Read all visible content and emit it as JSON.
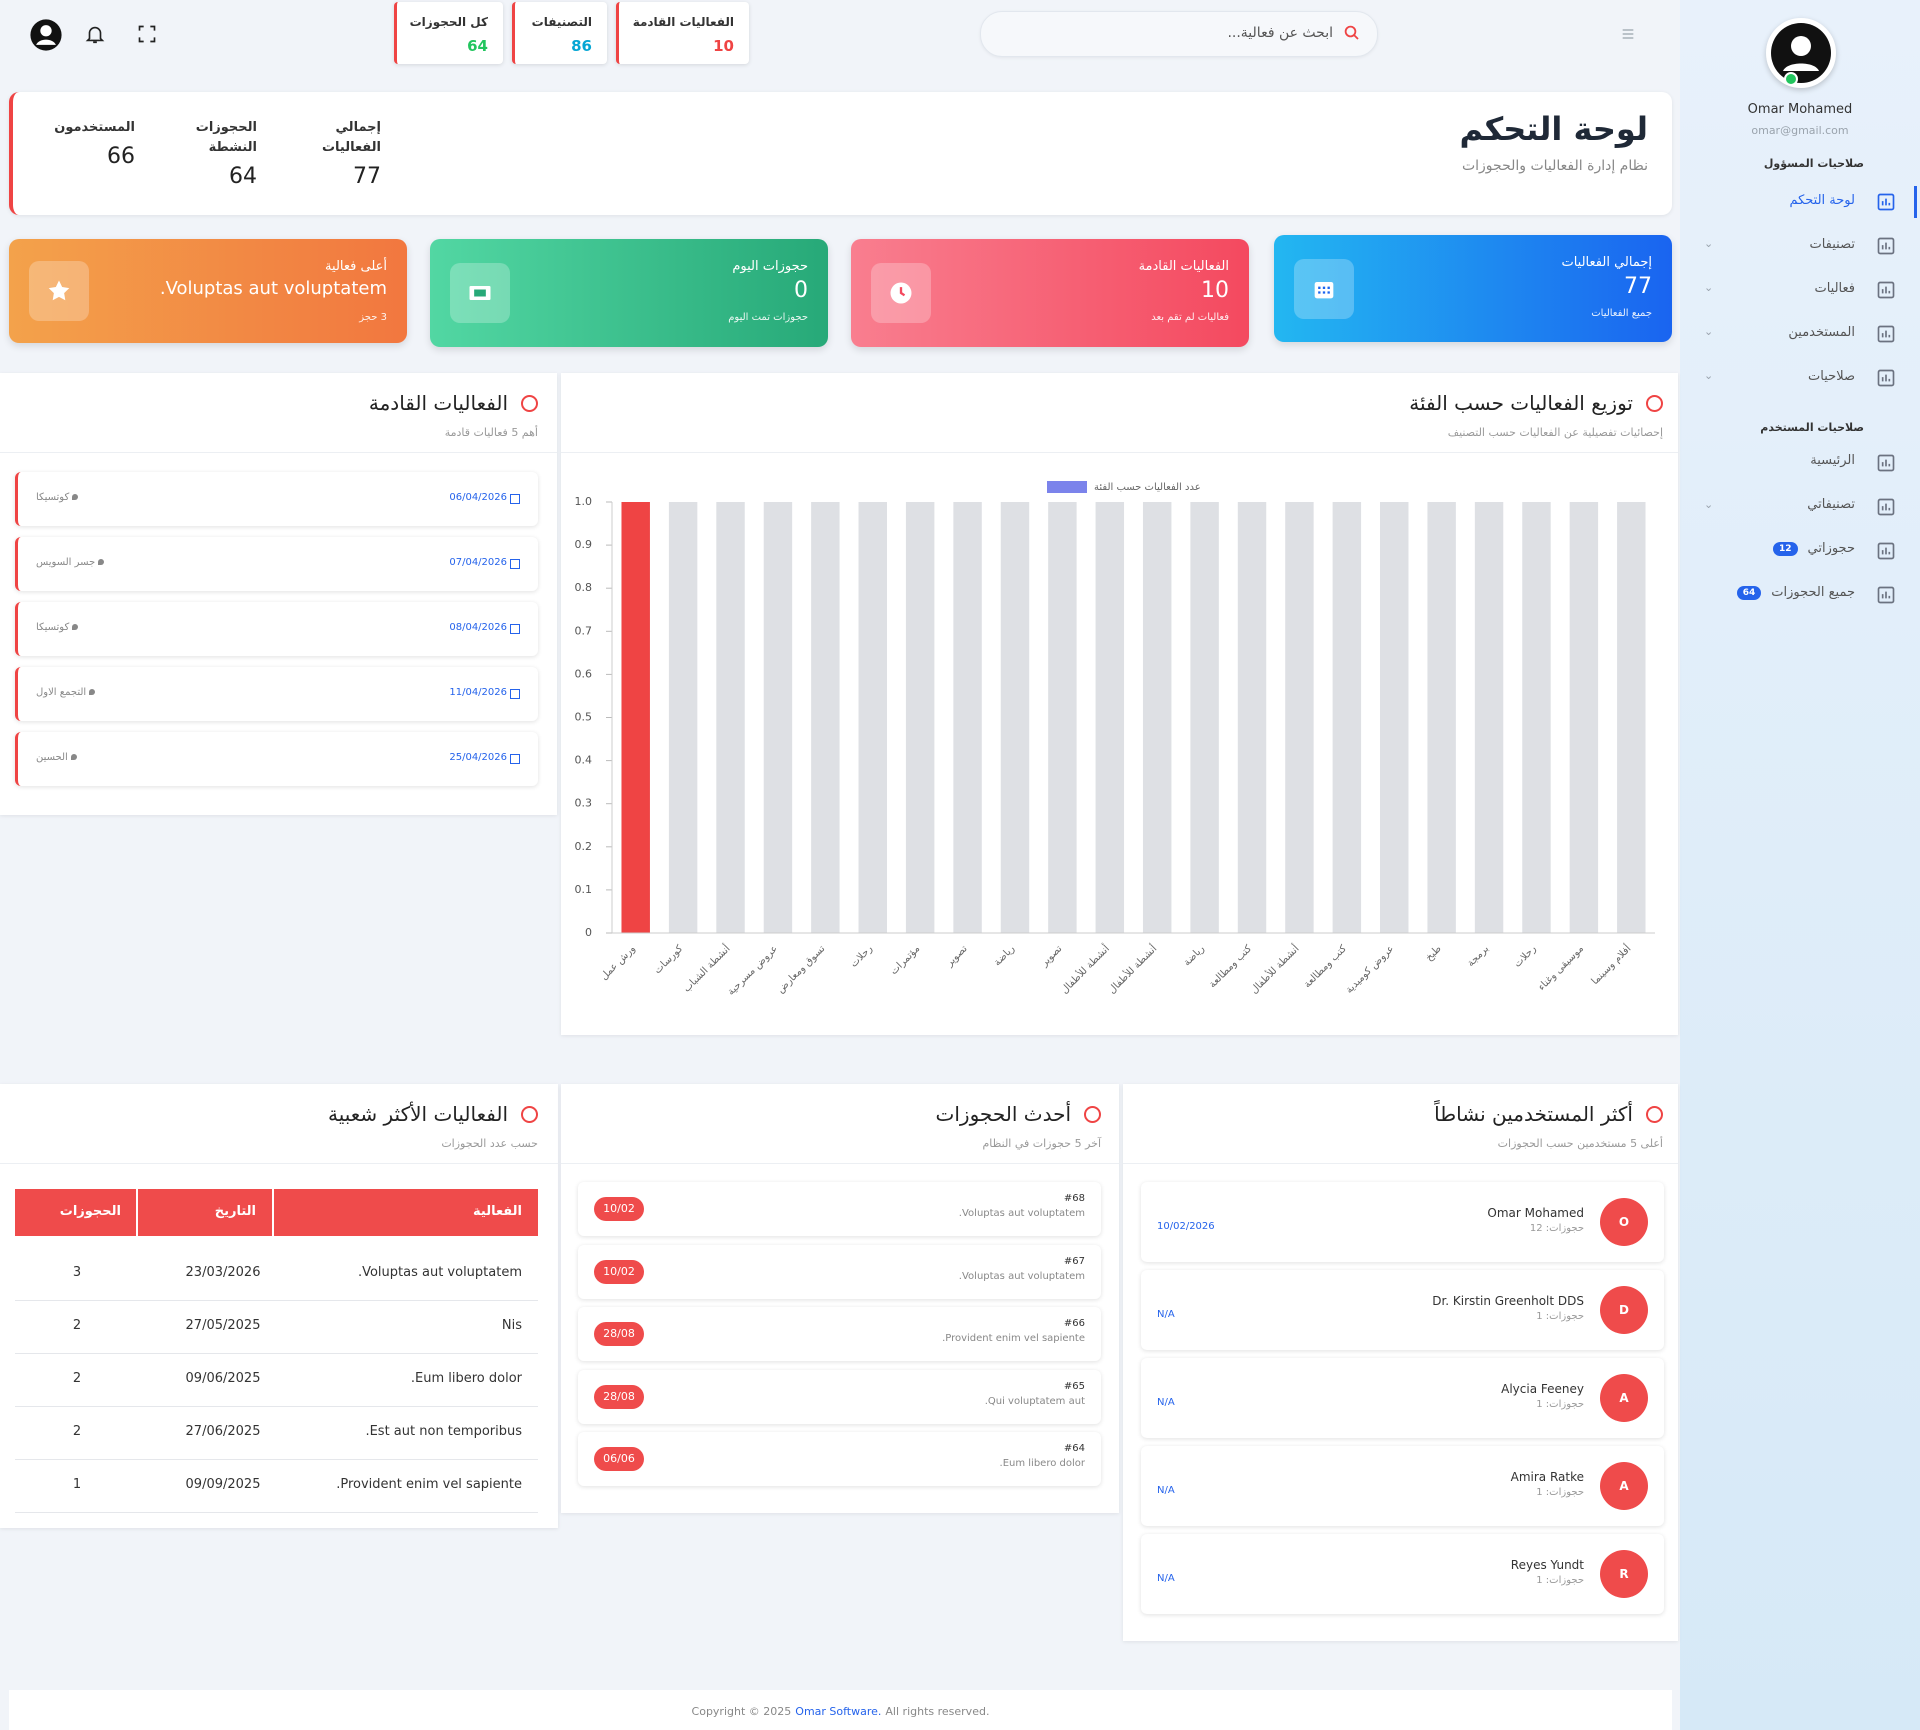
{
  "sidebar": {
    "user_name": "Omar Mohamed",
    "user_email": "omar@gmail.com",
    "admin_section": "صلاحيات المسؤول",
    "admin_items": [
      "لوحة التحكم",
      "تصنيفات",
      "فعاليات",
      "المستخدمين",
      "صلاحيات"
    ],
    "user_section": "صلاحيات المستخدم",
    "user_items": [
      {
        "label": "الرئيسية"
      },
      {
        "label": "تصنيفاتي"
      },
      {
        "label": "حجوزاتي",
        "badge": 12
      },
      {
        "label": "جميع الحجوزات",
        "badge": 64
      }
    ]
  },
  "topbar": {
    "search_placeholder": "ابحث عن فعالية...",
    "stats": [
      {
        "label": "الفعاليات القادمة",
        "value": 10,
        "color": "#ef4444"
      },
      {
        "label": "التصنيفات",
        "value": 86,
        "color": "#06a6d4"
      },
      {
        "label": "كل الحجوزات",
        "value": 64,
        "color": "#22c55e"
      }
    ]
  },
  "header": {
    "title": "لوحة التحكم",
    "subtitle": "نظام إدارة الفعاليات والحجوزات",
    "stats": [
      {
        "label": "إجمالي الفعاليات",
        "value": 77
      },
      {
        "label": "الحجوزات النشطة",
        "value": 64
      },
      {
        "label": "المستخدمون",
        "value": 66
      }
    ]
  },
  "cards": [
    {
      "title": "إجمالي الفعاليات",
      "value": 77,
      "note": "جميع الفعاليات"
    },
    {
      "title": "الفعاليات القادمة",
      "value": 10,
      "note": "فعاليات لم تقم بعد"
    },
    {
      "title": "حجوزات اليوم",
      "value": 0,
      "note": "حجوزات تمت اليوم"
    },
    {
      "title": "أعلى فعالية",
      "value": "Voluptas aut voluptatem.",
      "note": "3 حجز"
    }
  ],
  "upcoming": {
    "title": "الفعاليات القادمة",
    "subtitle": "أهم 5 فعاليات قادمة",
    "items": [
      {
        "date": "06/04/2026",
        "place": "كوتسيكا"
      },
      {
        "date": "07/04/2026",
        "place": "جسر السويس"
      },
      {
        "date": "08/04/2026",
        "place": "كوتسيكا"
      },
      {
        "date": "11/04/2026",
        "place": "التجمع الاول"
      },
      {
        "date": "25/04/2026",
        "place": "الحسين"
      }
    ]
  },
  "chart_data": {
    "type": "bar",
    "title": "توزيع الفعاليات حسب الفئة",
    "subtitle": "إحصائيات تفصيلية عن الفعاليات حسب التصنيف",
    "categories": [
      "ورش عمل",
      "كورسات",
      "أنشطة الشباب",
      "عروض مسرحية",
      "تسوق ومعارض",
      "رحلات",
      "مؤتمرات",
      "تصوير",
      "رياضة",
      "تصوير",
      "أنشطة للأطفال",
      "أنشطة للأطفال",
      "رياضة",
      "كتب ومطالعة",
      "أنشطة للأطفال",
      "كتب ومطالعة",
      "عروض كوميدية",
      "طبخ",
      "برمجة",
      "رحلات",
      "موسيقى وغناء",
      "أفلام وسينما"
    ],
    "series": [
      {
        "name": "عدد الفعاليات حسب الفئة",
        "color": "#ef4444",
        "legend_color": "#7b83eb",
        "values": [
          1,
          0,
          0,
          0,
          0,
          0,
          0,
          0,
          0,
          0,
          0,
          0,
          0,
          0,
          0,
          0,
          0,
          0,
          0,
          0,
          0,
          0
        ]
      }
    ],
    "ylim": [
      0,
      1
    ],
    "yticks": [
      0,
      0.1,
      0.2,
      0.3,
      0.4,
      0.5,
      0.6,
      0.7,
      0.8,
      0.9,
      {
        "value": 1,
        "label": "1.0"
      }
    ]
  },
  "popular": {
    "title": "الفعاليات الأكثر شعبية",
    "subtitle": "حسب عدد الحجوزات",
    "columns": [
      "الفعالية",
      "التاريخ",
      "الحجوزات"
    ],
    "rows": [
      [
        "Voluptas aut voluptatem.",
        "23/03/2026",
        3
      ],
      [
        "Nis",
        "27/05/2025",
        2
      ],
      [
        "Eum libero dolor.",
        "09/06/2025",
        2
      ],
      [
        "Est aut non temporibus.",
        "27/06/2025",
        2
      ],
      [
        "Provident enim vel sapiente.",
        "09/09/2025",
        1
      ]
    ]
  },
  "recent": {
    "title": "أحدث الحجوزات",
    "subtitle": "آخر 5 حجوزات في النظام",
    "items": [
      {
        "id": "#68",
        "event": "Voluptas aut voluptatem.",
        "date": "10/02"
      },
      {
        "id": "#67",
        "event": "Voluptas aut voluptatem.",
        "date": "10/02"
      },
      {
        "id": "#66",
        "event": "Provident enim vel sapiente.",
        "date": "28/08"
      },
      {
        "id": "#65",
        "event": "Qui voluptatem aut.",
        "date": "28/08"
      },
      {
        "id": "#64",
        "event": "Eum libero dolor.",
        "date": "06/06"
      }
    ]
  },
  "users": {
    "title": "أكثر المستخدمين نشاطاً",
    "subtitle": "أعلى 5 مستخدمين حسب الحجوزات",
    "items": [
      {
        "initial": "O",
        "name": "Omar Mohamed",
        "bookings": "حجوزات: 12",
        "date": "10/02/2026"
      },
      {
        "initial": "D",
        "name": "Dr. Kirstin Greenholt DDS",
        "bookings": "حجوزات: 1",
        "date": "N/A"
      },
      {
        "initial": "A",
        "name": "Alycia Feeney",
        "bookings": "حجوزات: 1",
        "date": "N/A"
      },
      {
        "initial": "A",
        "name": "Amira Ratke",
        "bookings": "حجوزات: 1",
        "date": "N/A"
      },
      {
        "initial": "R",
        "name": "Reyes Yundt",
        "bookings": "حجوزات: 1",
        "date": "N/A"
      }
    ]
  },
  "footer": {
    "text": "Copyright © 2025",
    "brand": "Omar Software.",
    "rest": "All rights reserved."
  }
}
